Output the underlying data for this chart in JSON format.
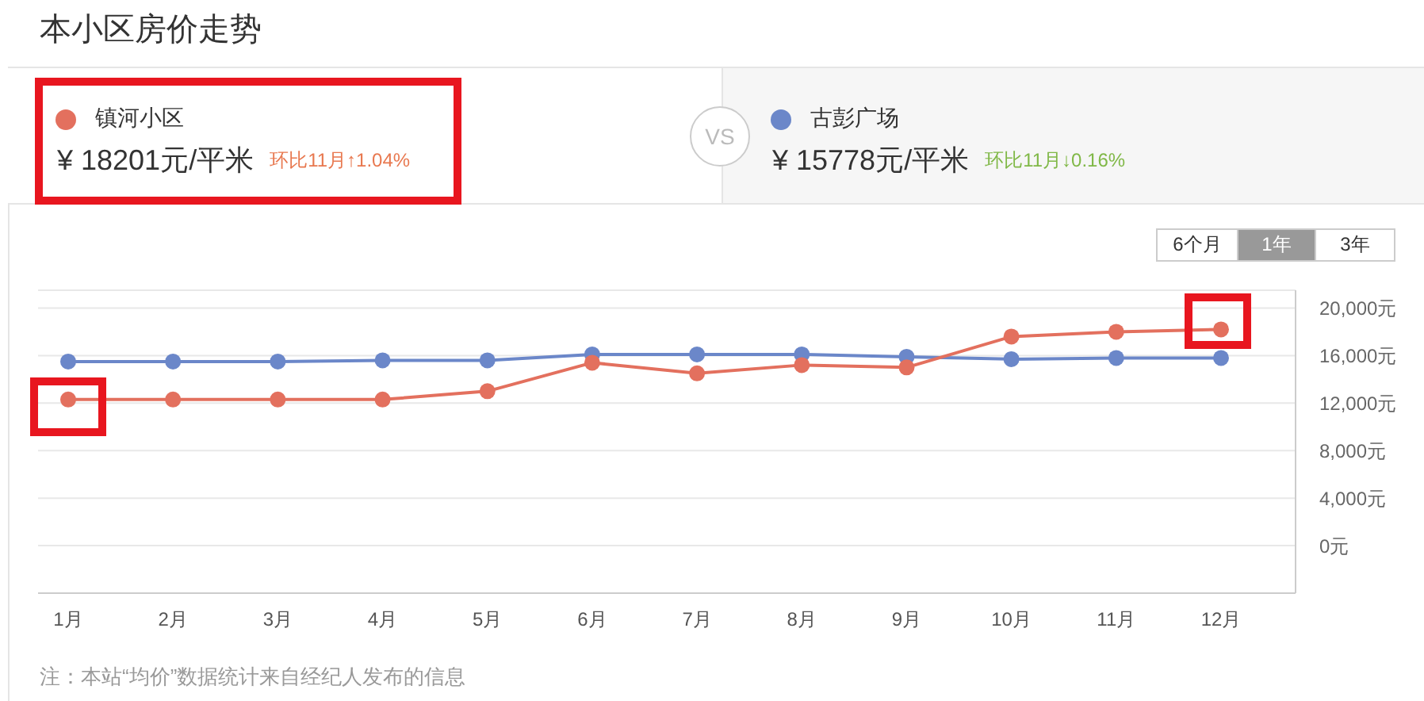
{
  "chart_data": {
    "type": "line",
    "title": "本小区房价走势",
    "categories": [
      "1月",
      "2月",
      "3月",
      "4月",
      "5月",
      "6月",
      "7月",
      "8月",
      "9月",
      "10月",
      "11月",
      "12月"
    ],
    "series": [
      {
        "name": "镇河小区",
        "color": "#e3705e",
        "values": [
          12300,
          12300,
          12300,
          12300,
          13000,
          15400,
          14500,
          15200,
          15000,
          17600,
          18000,
          18200
        ]
      },
      {
        "name": "古彭广场",
        "color": "#6b87c9",
        "values": [
          15500,
          15500,
          15500,
          15600,
          15600,
          16100,
          16100,
          16100,
          15900,
          15700,
          15800,
          15800
        ]
      }
    ],
    "ylim": [
      -4000,
      21500
    ],
    "yticks": [
      {
        "value": 0,
        "label": "0元"
      },
      {
        "value": 4000,
        "label": "4,000元"
      },
      {
        "value": 8000,
        "label": "8,000元"
      },
      {
        "value": 12000,
        "label": "12,000元"
      },
      {
        "value": 16000,
        "label": "16,000元"
      },
      {
        "value": 20000,
        "label": "20,000元"
      }
    ],
    "grid": "y",
    "legend": "top",
    "marker": "circle",
    "annotations": [
      "¥ 18201元/平米",
      "环比11月↑1.04%",
      "VS",
      "¥ 15778元/平米",
      "环比11月↓0.16%",
      "6个月",
      "1年",
      "3年",
      "注：本站“均价”数据统计来自经纪人发布的信息"
    ]
  }
}
